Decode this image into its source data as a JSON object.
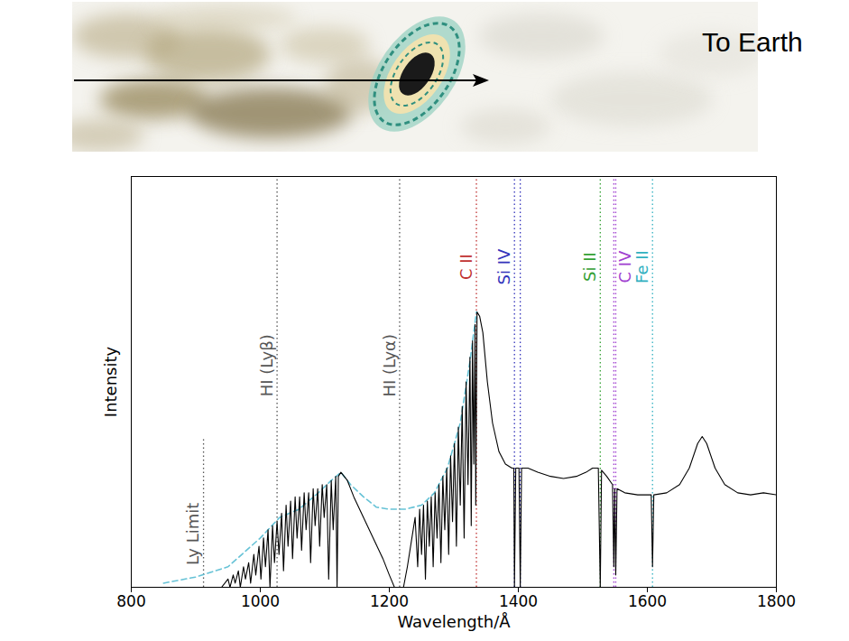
{
  "illustration": {
    "text": "To Earth"
  },
  "chart_data": {
    "type": "line",
    "xlabel": "Wavelength/Å",
    "ylabel": "Intensity",
    "xlim": [
      800,
      1800
    ],
    "xticks": [
      800,
      1000,
      1200,
      1400,
      1600,
      1800
    ],
    "ylim": [
      0,
      1
    ],
    "yticks": [],
    "tick_labels": "x",
    "grid": false,
    "series": [
      {
        "color": "#66c2d6",
        "line_style": "dashed",
        "x": [
          850,
          900,
          950,
          1000,
          1030,
          1060,
          1090,
          1110,
          1125,
          1140,
          1160,
          1180,
          1200,
          1225,
          1250,
          1270,
          1290,
          1310,
          1325,
          1335
        ],
        "values": [
          0.01,
          0.025,
          0.05,
          0.12,
          0.17,
          0.19,
          0.23,
          0.26,
          0.28,
          0.25,
          0.22,
          0.195,
          0.19,
          0.19,
          0.2,
          0.23,
          0.29,
          0.4,
          0.55,
          0.67
        ]
      },
      {
        "color": "#000000",
        "line_style": "solid",
        "x": [
          940,
          950,
          953,
          958,
          961,
          966,
          969,
          974,
          977,
          982,
          985,
          990,
          993,
          998,
          1001,
          1005,
          1008,
          1012,
          1015,
          1019,
          1022,
          1026,
          1029,
          1033,
          1036,
          1040,
          1043,
          1047,
          1050,
          1054,
          1057,
          1061,
          1064,
          1068,
          1071,
          1075,
          1078,
          1082,
          1085,
          1089,
          1092,
          1096,
          1099,
          1103,
          1106,
          1110,
          1113,
          1117,
          1119,
          1121,
          1125,
          1135,
          1145,
          1160,
          1175,
          1190,
          1200,
          1208,
          1222,
          1228,
          1235,
          1240,
          1244,
          1247,
          1250,
          1253,
          1256,
          1259,
          1262,
          1265,
          1268,
          1271,
          1274,
          1277,
          1280,
          1283,
          1286,
          1289,
          1292,
          1295,
          1298,
          1301,
          1304,
          1307,
          1310,
          1313,
          1316,
          1319,
          1322,
          1325,
          1327,
          1329,
          1331,
          1333,
          1334,
          1336,
          1340,
          1345,
          1352,
          1360,
          1370,
          1380,
          1390,
          1393,
          1394,
          1396,
          1401,
          1403,
          1405,
          1415,
          1430,
          1450,
          1470,
          1490,
          1505,
          1515,
          1524,
          1527,
          1529,
          1537,
          1546,
          1548,
          1549.5,
          1551,
          1553,
          1565,
          1585,
          1606,
          1608,
          1610,
          1630,
          1650,
          1665,
          1678,
          1685,
          1692,
          1705,
          1720,
          1740,
          1760,
          1780,
          1800
        ],
        "values": [
          0.0,
          0.02,
          0.0,
          0.03,
          0.01,
          0.04,
          0.0,
          0.05,
          0.02,
          0.06,
          0.01,
          0.08,
          0.03,
          0.1,
          0.02,
          0.12,
          0.05,
          0.14,
          0.0,
          0.15,
          0.06,
          0.16,
          0.08,
          0.18,
          0.04,
          0.2,
          0.1,
          0.21,
          0.07,
          0.22,
          0.12,
          0.22,
          0.09,
          0.23,
          0.14,
          0.23,
          0.06,
          0.24,
          0.15,
          0.24,
          0.1,
          0.25,
          0.17,
          0.25,
          0.02,
          0.26,
          0.14,
          0.27,
          0.0,
          0.27,
          0.28,
          0.26,
          0.22,
          0.17,
          0.12,
          0.07,
          0.03,
          0.0,
          0.0,
          0.05,
          0.12,
          0.17,
          0.05,
          0.19,
          0.08,
          0.2,
          0.02,
          0.21,
          0.1,
          0.22,
          0.05,
          0.23,
          0.12,
          0.25,
          0.06,
          0.27,
          0.14,
          0.29,
          0.08,
          0.32,
          0.16,
          0.35,
          0.1,
          0.39,
          0.2,
          0.44,
          0.12,
          0.5,
          0.25,
          0.56,
          0.15,
          0.6,
          0.3,
          0.64,
          0.2,
          0.67,
          0.66,
          0.62,
          0.5,
          0.4,
          0.33,
          0.3,
          0.29,
          0.29,
          0.0,
          0.29,
          0.29,
          0.0,
          0.29,
          0.29,
          0.28,
          0.27,
          0.265,
          0.27,
          0.28,
          0.29,
          0.29,
          0.0,
          0.285,
          0.27,
          0.25,
          0.05,
          0.24,
          0.03,
          0.24,
          0.23,
          0.225,
          0.225,
          0.05,
          0.225,
          0.23,
          0.25,
          0.29,
          0.35,
          0.367,
          0.35,
          0.29,
          0.25,
          0.23,
          0.225,
          0.23,
          0.225
        ]
      }
    ],
    "lines": [
      {
        "label": "Ly Limit",
        "x": [
          912
        ],
        "ymax": 0.36,
        "color": "#555555"
      },
      {
        "label": "HI (Lyβ)",
        "x": [
          1026
        ],
        "ymax": 1,
        "color": "#555555"
      },
      {
        "label": "HI (Lyα)",
        "x": [
          1216
        ],
        "ymax": 1,
        "color": "#555555"
      },
      {
        "label": "C II",
        "x": [
          1335
        ],
        "ymax": 1,
        "color": "#c03030"
      },
      {
        "label": "Si IV",
        "x": [
          1394,
          1403
        ],
        "ymax": 1,
        "color": "#3333bb"
      },
      {
        "label": "Si II",
        "x": [
          1527
        ],
        "ymax": 1,
        "color": "#33a033"
      },
      {
        "label": "C IV",
        "x": [
          1548,
          1551
        ],
        "ymax": 1,
        "color": "#a040d0"
      },
      {
        "label": "Fe II",
        "x": [
          1608
        ],
        "ymax": 1,
        "color": "#30b0c0"
      }
    ]
  }
}
